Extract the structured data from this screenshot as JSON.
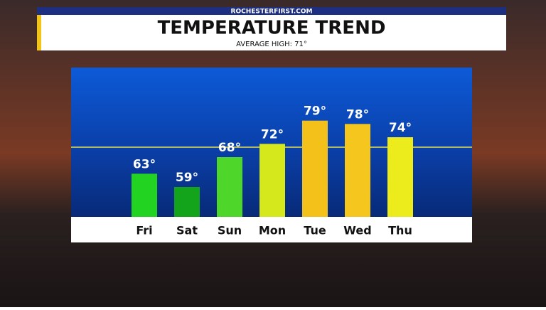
{
  "chart_data": {
    "type": "bar",
    "source": "ROCHESTERFIRST.COM",
    "title": "TEMPERATURE TREND",
    "subtitle": "AVERAGE HIGH: 71°",
    "average": 71,
    "categories": [
      "Fri",
      "Sat",
      "Sun",
      "Mon",
      "Tue",
      "Wed",
      "Thu"
    ],
    "values": [
      63,
      59,
      68,
      72,
      79,
      78,
      74
    ],
    "value_labels": [
      "63°",
      "59°",
      "68°",
      "72°",
      "79°",
      "78°",
      "74°"
    ],
    "colors": [
      "#22d322",
      "#13a41b",
      "#4fd62a",
      "#d4e81c",
      "#f4c01a",
      "#f4c61e",
      "#ecec1c"
    ],
    "average_color": "#e8e04a",
    "ylim": [
      50,
      95
    ]
  }
}
